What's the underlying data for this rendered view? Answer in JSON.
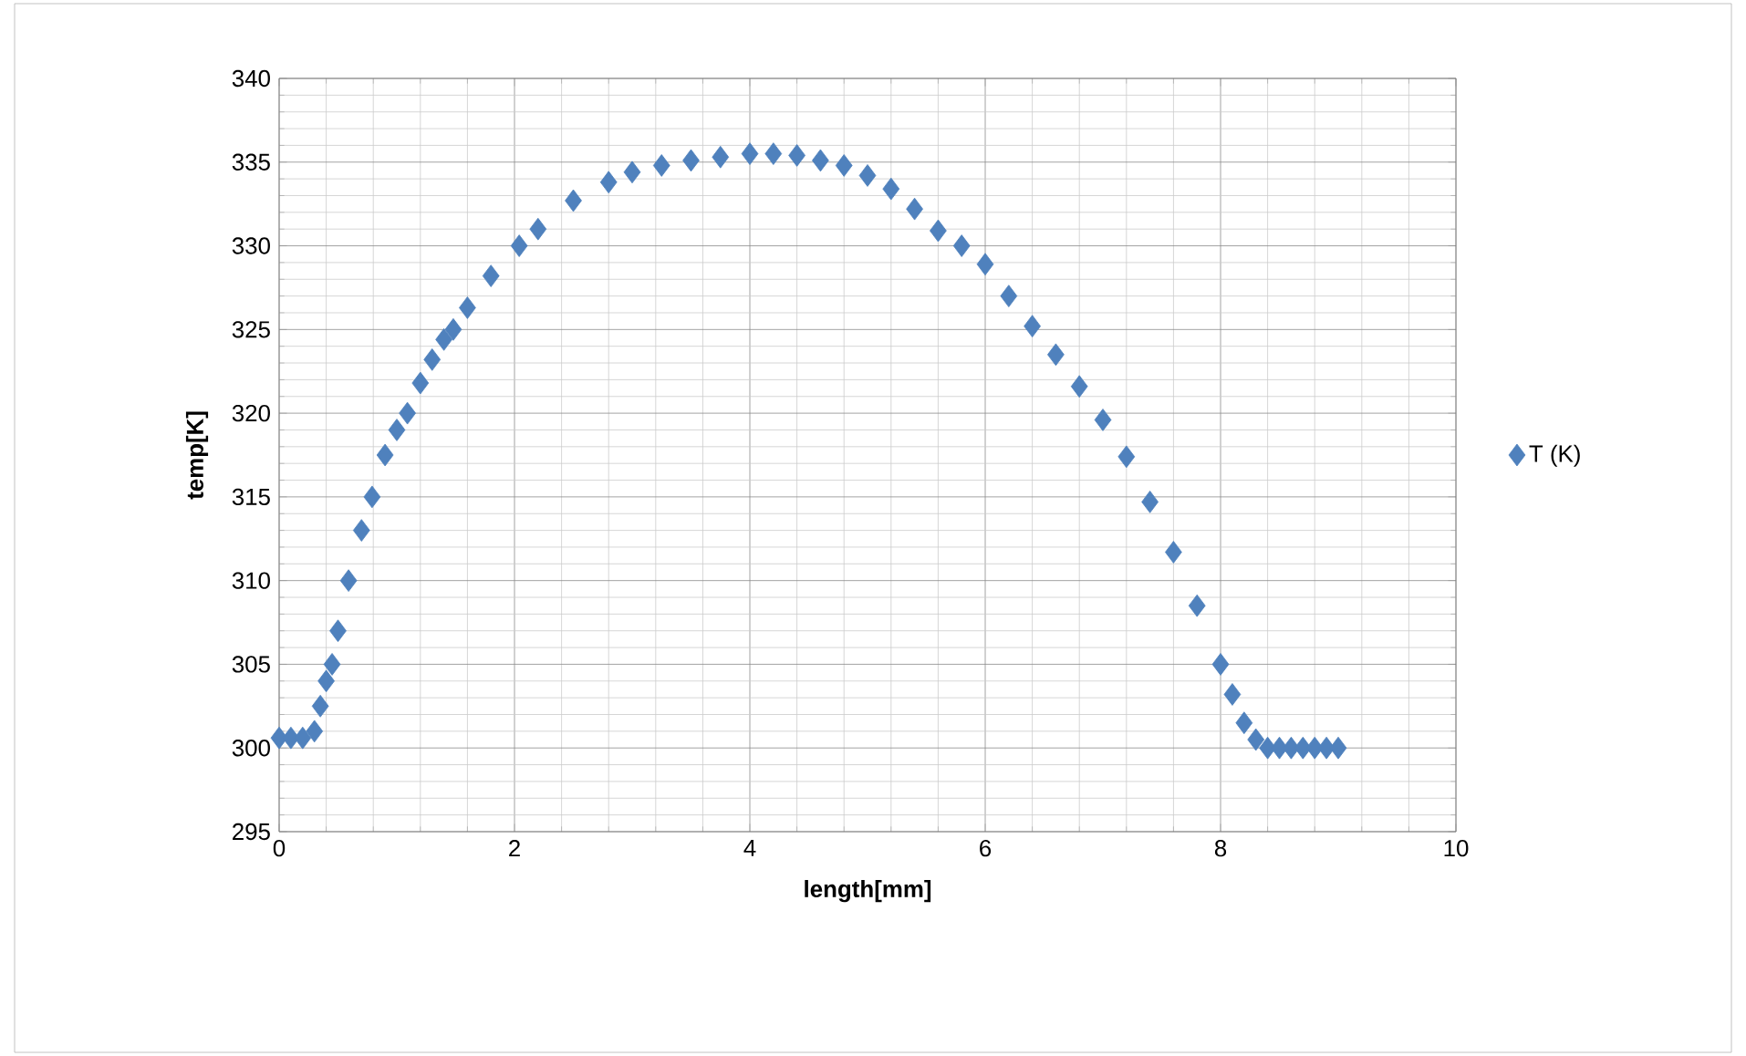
{
  "chart_data": {
    "type": "scatter",
    "xlabel": "length[mm]",
    "ylabel": "temp[K]",
    "xlim": [
      0,
      10
    ],
    "xticks": [
      0,
      2,
      4,
      6,
      8,
      10
    ],
    "ylim": [
      295,
      340
    ],
    "yticks": [
      295,
      300,
      305,
      310,
      315,
      320,
      325,
      330,
      335,
      340
    ],
    "grid": true,
    "legend": "right",
    "marker": "diamond",
    "series": [
      {
        "name": "T (K)",
        "color": "#4f81bd",
        "x": [
          0,
          0.1,
          0.2,
          0.3,
          0.35,
          0.4,
          0.45,
          0.5,
          0.59,
          0.7,
          0.79,
          0.9,
          1.0,
          1.09,
          1.2,
          1.3,
          1.4,
          1.48,
          1.6,
          1.8,
          2.04,
          2.2,
          2.5,
          2.8,
          3.0,
          3.25,
          3.5,
          3.75,
          4.0,
          4.2,
          4.4,
          4.6,
          4.8,
          5.0,
          5.2,
          5.4,
          5.6,
          5.8,
          6.0,
          6.2,
          6.4,
          6.6,
          6.8,
          7.0,
          7.2,
          7.4,
          7.6,
          7.8,
          8.0,
          8.1,
          8.2,
          8.3,
          8.4,
          8.5,
          8.6,
          8.7,
          8.8,
          8.9,
          9.0
        ],
        "values": [
          300.6,
          300.6,
          300.6,
          301,
          302.5,
          304,
          305,
          307,
          310,
          313,
          315,
          317.5,
          319,
          320,
          321.8,
          323.2,
          324.4,
          325,
          326.3,
          328.2,
          330,
          331,
          332.7,
          333.8,
          334.4,
          334.8,
          335.1,
          335.3,
          335.5,
          335.5,
          335.4,
          335.1,
          334.8,
          334.2,
          333.4,
          332.2,
          330.9,
          330,
          328.9,
          327,
          325.2,
          323.5,
          321.6,
          319.6,
          317.4,
          314.7,
          311.7,
          308.5,
          305,
          303.2,
          301.5,
          300.5,
          300,
          300,
          300,
          300,
          300,
          300,
          300
        ]
      }
    ]
  }
}
